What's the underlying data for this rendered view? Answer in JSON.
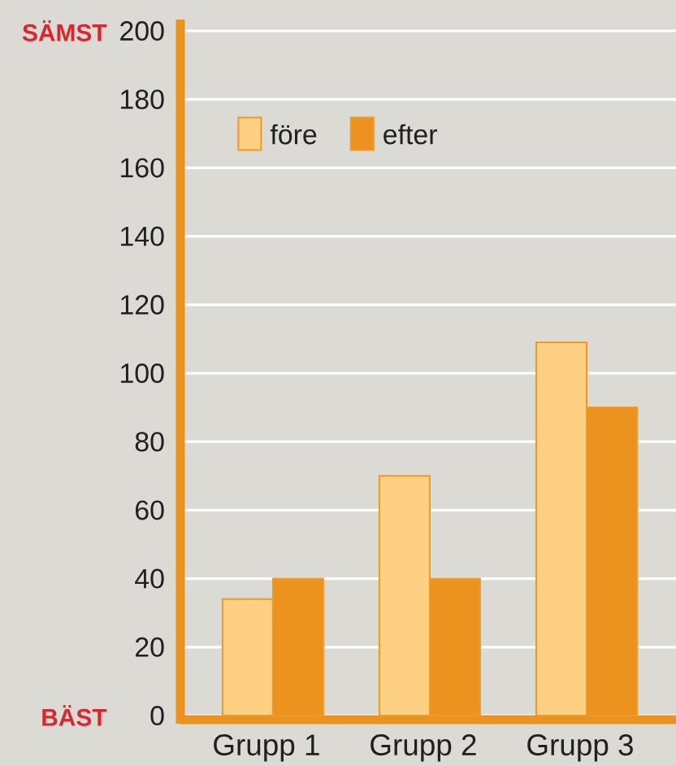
{
  "chart_data": {
    "type": "bar",
    "categories": [
      "Grupp 1",
      "Grupp 2",
      "Grupp 3"
    ],
    "series": [
      {
        "name": "före",
        "color": "#fed084",
        "values": [
          34,
          70,
          109
        ]
      },
      {
        "name": "efter",
        "color": "#eb921f",
        "values": [
          40,
          40,
          90
        ]
      }
    ],
    "ylim": [
      0,
      200
    ],
    "yticks": [
      0,
      20,
      40,
      60,
      80,
      100,
      120,
      140,
      160,
      180,
      200
    ],
    "grid": "y",
    "legend": "top left",
    "annotations": [
      "SÄMST",
      "BÄST"
    ]
  }
}
